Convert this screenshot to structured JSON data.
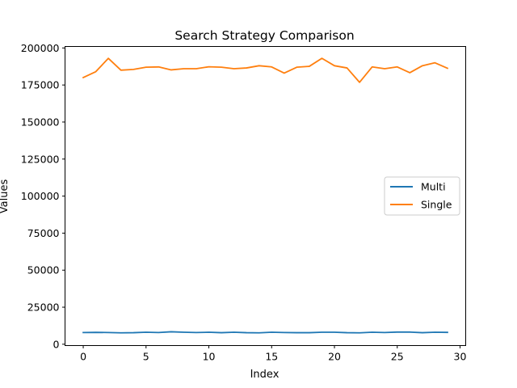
{
  "chart_data": {
    "type": "line",
    "title": "Search Strategy Comparison",
    "xlabel": "Index",
    "ylabel": "Values",
    "xlim": [
      -1.45,
      30.45
    ],
    "ylim": [
      -900,
      201000
    ],
    "xticks": [
      0,
      5,
      10,
      15,
      20,
      25,
      30
    ],
    "yticks": [
      0,
      25000,
      50000,
      75000,
      100000,
      125000,
      150000,
      175000,
      200000
    ],
    "grid": false,
    "legend_position": "center-right",
    "x": [
      0,
      1,
      2,
      3,
      4,
      5,
      6,
      7,
      8,
      9,
      10,
      11,
      12,
      13,
      14,
      15,
      16,
      17,
      18,
      19,
      20,
      21,
      22,
      23,
      24,
      25,
      26,
      27,
      28,
      29
    ],
    "series": [
      {
        "name": "Multi",
        "color": "#1f77b4",
        "values": [
          7900,
          8000,
          7900,
          7700,
          7800,
          8100,
          7900,
          8400,
          8100,
          7900,
          8100,
          7800,
          8100,
          7800,
          7700,
          8100,
          7900,
          7800,
          7800,
          8100,
          8100,
          7800,
          7700,
          8100,
          7900,
          8200,
          8200,
          7800,
          8100,
          8000
        ]
      },
      {
        "name": "Single",
        "color": "#ff7f0e",
        "values": [
          180000,
          184000,
          193000,
          185000,
          185500,
          187000,
          187200,
          185200,
          186000,
          186000,
          187300,
          187000,
          186000,
          186500,
          188000,
          187200,
          183000,
          187000,
          187600,
          193000,
          188000,
          186500,
          176800,
          187200,
          186000,
          187200,
          183300,
          188000,
          190000,
          186300
        ]
      }
    ]
  }
}
